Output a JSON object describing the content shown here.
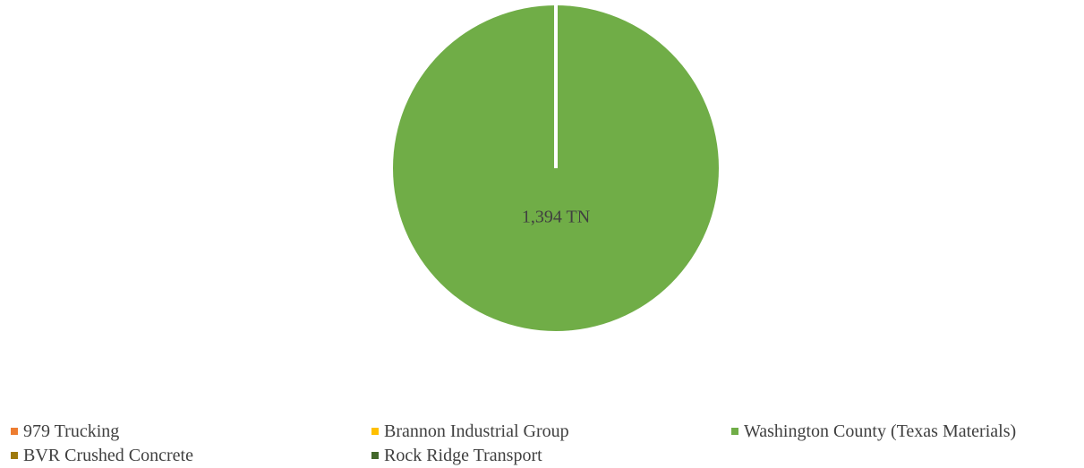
{
  "chart_data": {
    "type": "pie",
    "title": "",
    "unit": "TN",
    "categories": [
      "979 Trucking",
      "Brannon Industrial Group",
      "Washington County (Texas Materials)",
      "BVR Crushed Concrete",
      "Rock Ridge Transport"
    ],
    "values": [
      0,
      0,
      1394,
      0,
      0
    ],
    "colors": [
      "#ED7D31",
      "#FFC000",
      "#70AD47",
      "#9E7A0E",
      "#43682B"
    ],
    "data_labels": [
      "",
      "",
      "1,394 TN",
      "",
      ""
    ],
    "legend_position": "bottom"
  },
  "legend": {
    "items": [
      {
        "label": "979 Trucking",
        "color": "#ED7D31"
      },
      {
        "label": "Brannon Industrial Group",
        "color": "#FFC000"
      },
      {
        "label": "Washington County (Texas Materials)",
        "color": "#70AD47"
      },
      {
        "label": "BVR Crushed Concrete",
        "color": "#9E7A0E"
      },
      {
        "label": "Rock Ridge Transport",
        "color": "#43682B"
      }
    ]
  }
}
